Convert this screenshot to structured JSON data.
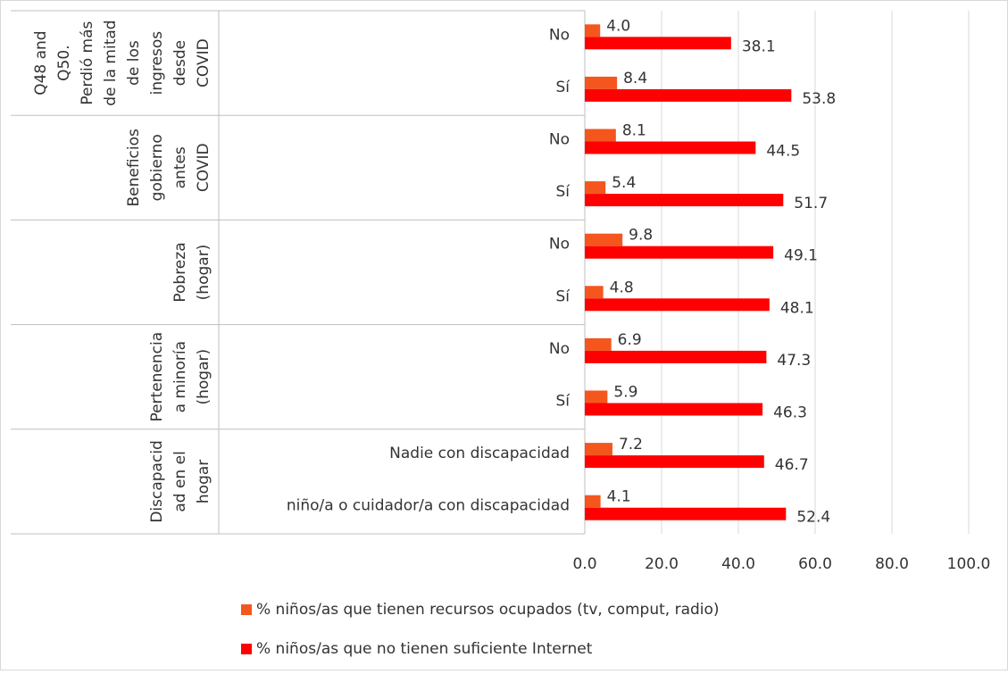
{
  "chart_data": {
    "type": "bar",
    "orientation": "horizontal",
    "groups": [
      {
        "label_lines": [
          "Q48 and",
          "Q50.",
          "Perdió más",
          "de la mitad",
          "de los",
          "ingresos",
          "desde",
          "COVID"
        ]
      },
      {
        "label_lines": [
          "Beneficios",
          "gobierno",
          "antes",
          "COVID"
        ]
      },
      {
        "label_lines": [
          "Pobreza",
          "(hogar)"
        ]
      },
      {
        "label_lines": [
          "Pertenencia",
          "a minoría",
          "(hogar)"
        ]
      },
      {
        "label_lines": [
          "Discapacid",
          "ad en el",
          "hogar"
        ]
      }
    ],
    "categories": [
      "No",
      "Sí",
      "No",
      "Sí",
      "No",
      "Sí",
      "No",
      "Sí",
      "Nadie con discapacidad",
      "niño/a o cuidador/a con discapacidad"
    ],
    "series": [
      {
        "name": "% niños/as que tienen recursos ocupados (tv, comput, radio)",
        "color": "#f4561d",
        "values": [
          4.0,
          8.4,
          8.1,
          5.4,
          9.8,
          4.8,
          6.9,
          5.9,
          7.2,
          4.1
        ],
        "value_labels": [
          "4.0",
          "8.4",
          "8.1",
          "5.4",
          "9.8",
          "4.8",
          "6.9",
          "5.9",
          "7.2",
          "4.1"
        ]
      },
      {
        "name": "% niños/as que no tienen suficiente Internet",
        "color": "#ff0000",
        "values": [
          38.1,
          53.8,
          44.5,
          51.7,
          49.1,
          48.1,
          47.3,
          46.3,
          46.7,
          52.4
        ],
        "value_labels": [
          "38.1",
          "53.8",
          "44.5",
          "51.7",
          "49.1",
          "48.1",
          "47.3",
          "46.3",
          "46.7",
          "52.4"
        ]
      }
    ],
    "xlim": [
      0,
      100
    ],
    "xticks": [
      {
        "value": 0,
        "label": "0.0"
      },
      {
        "value": 20,
        "label": "20.0"
      },
      {
        "value": 40,
        "label": "40.0"
      },
      {
        "value": 60,
        "label": "60.0"
      },
      {
        "value": 80,
        "label": "80.0"
      },
      {
        "value": 100,
        "label": "100.0"
      }
    ],
    "grid": true,
    "legend": "bottom"
  }
}
